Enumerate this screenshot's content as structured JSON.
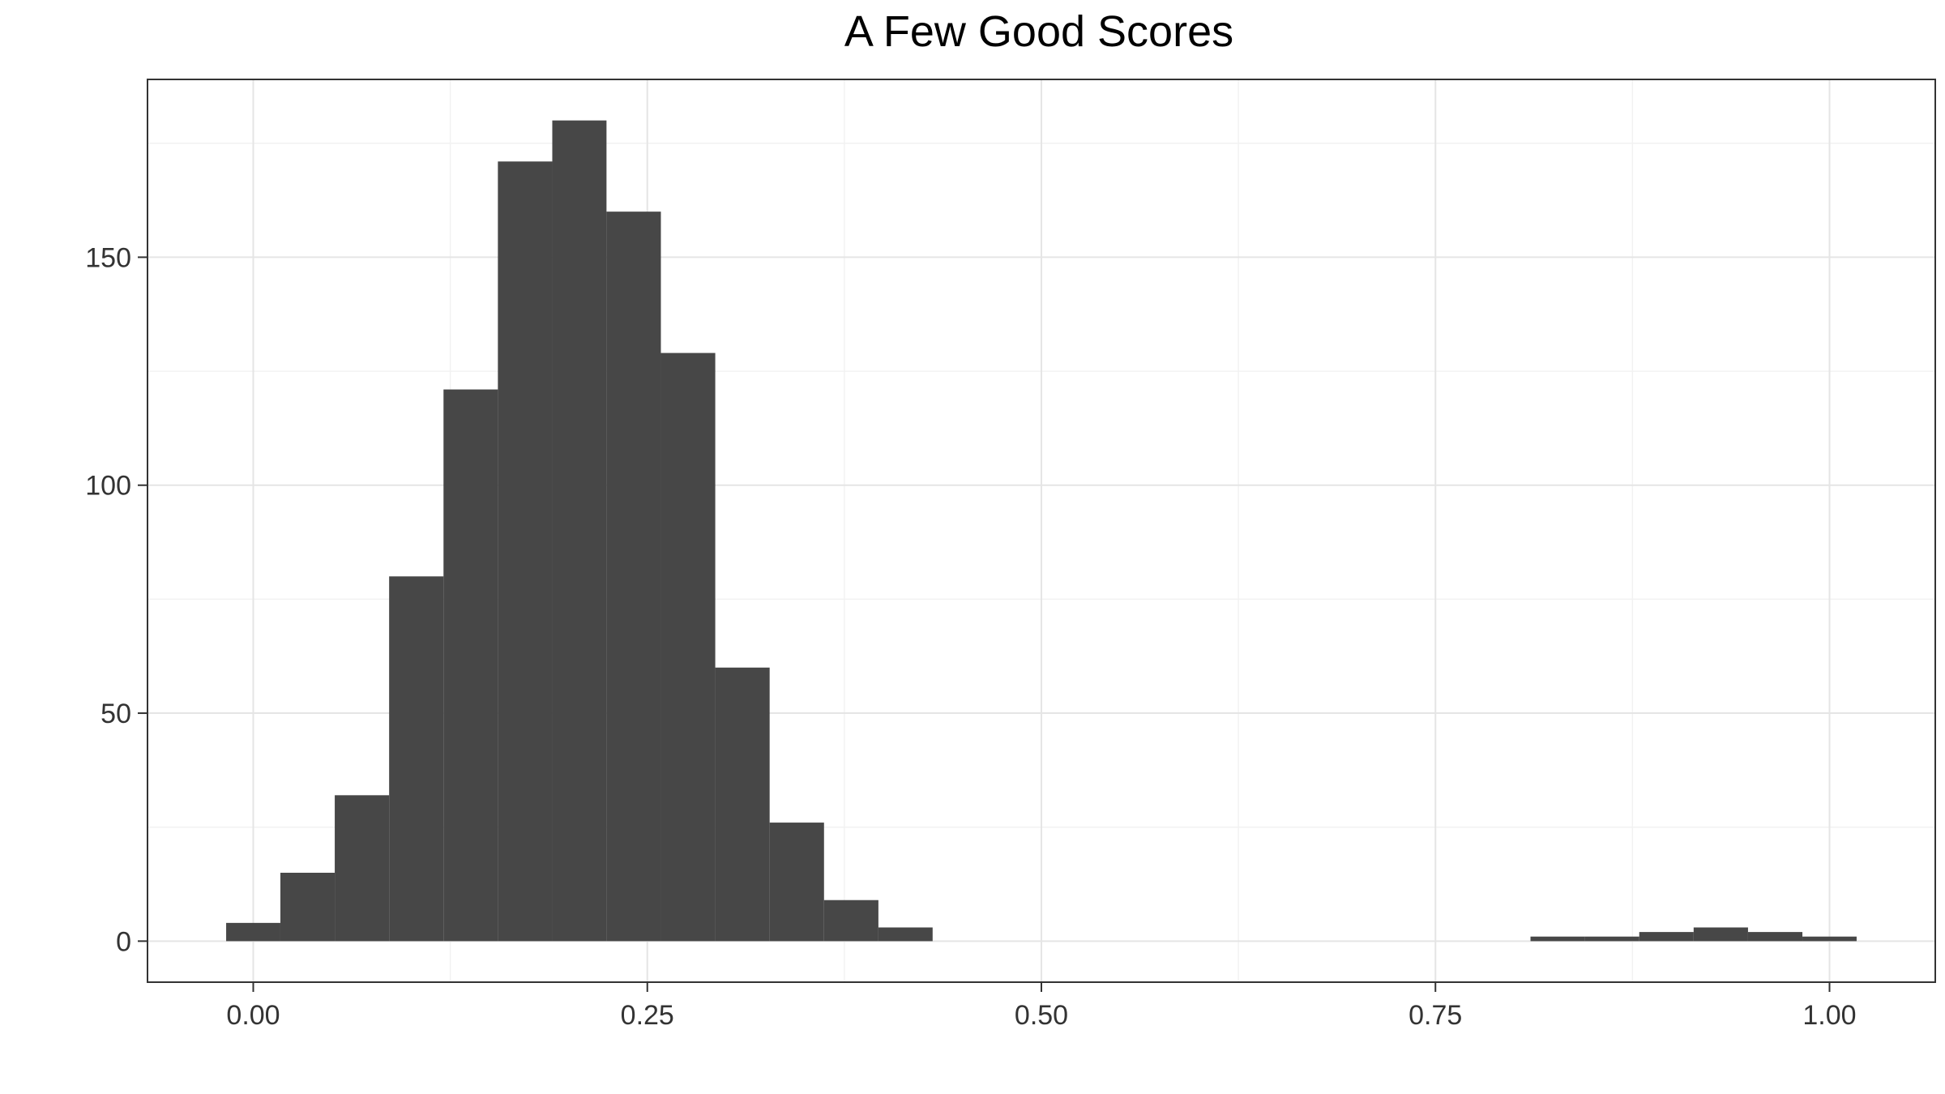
{
  "chart_data": {
    "type": "histogram",
    "title": "A Few Good Scores",
    "xlabel": "",
    "ylabel": "",
    "xlim": [
      -0.0671,
      1.0671
    ],
    "ylim": [
      -9,
      189
    ],
    "x_ticks": [
      "0.00",
      "0.25",
      "0.50",
      "0.75",
      "1.00"
    ],
    "x_tick_values": [
      0,
      0.25,
      0.5,
      0.75,
      1.0
    ],
    "y_ticks": [
      "0",
      "50",
      "100",
      "150"
    ],
    "y_tick_values": [
      0,
      50,
      100,
      150
    ],
    "grid": true,
    "bin_width": 0.0345,
    "bins": [
      {
        "x0": -0.0172,
        "x1": 0.0172,
        "count": 4
      },
      {
        "x0": 0.0172,
        "x1": 0.0517,
        "count": 15
      },
      {
        "x0": 0.0517,
        "x1": 0.0862,
        "count": 32
      },
      {
        "x0": 0.0862,
        "x1": 0.1207,
        "count": 80
      },
      {
        "x0": 0.1207,
        "x1": 0.1552,
        "count": 121
      },
      {
        "x0": 0.1552,
        "x1": 0.1897,
        "count": 171
      },
      {
        "x0": 0.1897,
        "x1": 0.2241,
        "count": 180
      },
      {
        "x0": 0.2241,
        "x1": 0.2586,
        "count": 160
      },
      {
        "x0": 0.2586,
        "x1": 0.2931,
        "count": 129
      },
      {
        "x0": 0.2931,
        "x1": 0.3276,
        "count": 60
      },
      {
        "x0": 0.3276,
        "x1": 0.3621,
        "count": 26
      },
      {
        "x0": 0.3621,
        "x1": 0.3966,
        "count": 9
      },
      {
        "x0": 0.3966,
        "x1": 0.431,
        "count": 3
      },
      {
        "x0": 0.8103,
        "x1": 0.8448,
        "count": 1
      },
      {
        "x0": 0.8448,
        "x1": 0.8793,
        "count": 1
      },
      {
        "x0": 0.8793,
        "x1": 0.9138,
        "count": 2
      },
      {
        "x0": 0.9138,
        "x1": 0.9483,
        "count": 3
      },
      {
        "x0": 0.9483,
        "x1": 0.9828,
        "count": 2
      },
      {
        "x0": 0.9828,
        "x1": 1.0172,
        "count": 1
      }
    ],
    "colors": {
      "bar": "#474747",
      "panel_border": "#333333",
      "grid_major": "#e5e5e5",
      "grid_minor": "#f2f2f2",
      "tick": "#333333",
      "background": "#ffffff"
    }
  }
}
